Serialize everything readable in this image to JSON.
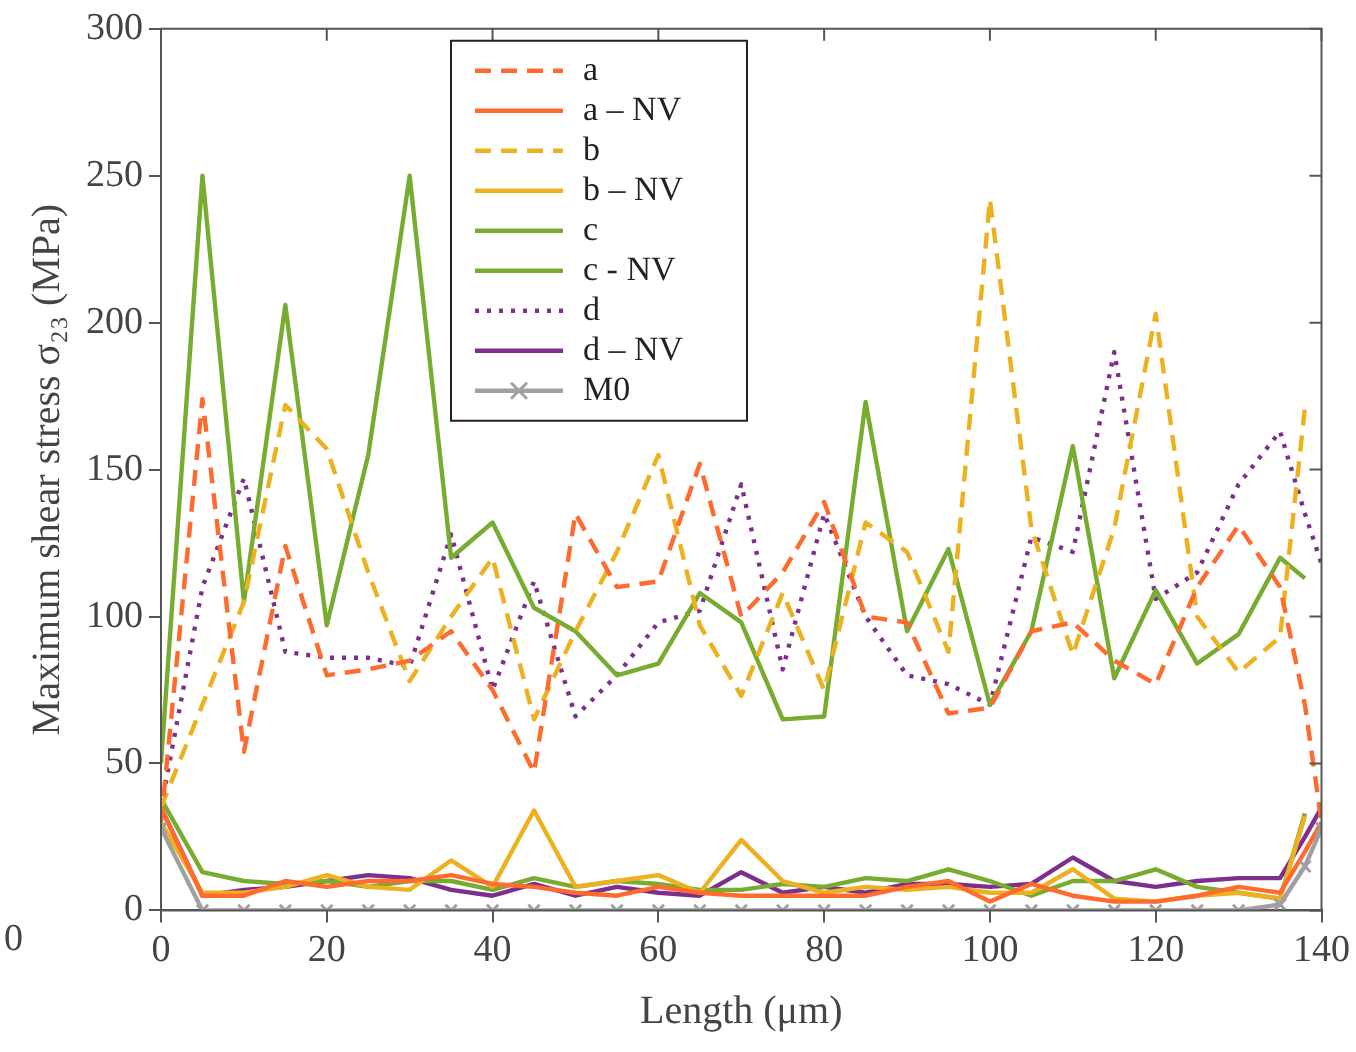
{
  "chart_data": {
    "type": "line",
    "xlabel": "Length (μm)",
    "ylabel": "Maximum shear stress σ₂₃ (MPa)",
    "x": [
      0,
      5,
      10,
      15,
      20,
      25,
      30,
      35,
      40,
      45,
      50,
      55,
      60,
      65,
      70,
      75,
      80,
      85,
      90,
      95,
      100,
      105,
      110,
      115,
      120,
      125,
      130,
      135,
      138,
      140
    ],
    "xlim": [
      0,
      140
    ],
    "xticks": [
      0,
      20,
      40,
      60,
      80,
      100,
      120,
      140
    ],
    "ylim": [
      0,
      300
    ],
    "yticks": [
      0,
      50,
      100,
      150,
      200,
      250,
      300
    ],
    "grid": false,
    "legend": "top",
    "marker": "none",
    "annotations": [
      "0"
    ],
    "series": [
      {
        "name": "a",
        "color": "#ff6a2e",
        "line_style": "dashed",
        "values": [
          30,
          174,
          54,
          124,
          80,
          82,
          85,
          95,
          75,
          47,
          135,
          110,
          112,
          152,
          100,
          115,
          139,
          100,
          98,
          67,
          69,
          95,
          98,
          85,
          77,
          110,
          131,
          110,
          70,
          30
        ]
      },
      {
        "name": "a – NV",
        "color": "#ff6a2e",
        "line_style": "solid",
        "values": [
          35,
          5,
          5,
          10,
          8,
          10,
          10,
          12,
          9,
          8,
          6,
          5,
          8,
          6,
          5,
          5,
          5,
          5,
          8,
          10,
          3,
          9,
          5,
          3,
          3,
          5,
          8,
          6,
          20,
          30
        ]
      },
      {
        "name": "b",
        "color": "#edb120",
        "line_style": "dashed",
        "values": [
          35,
          70,
          105,
          172,
          157,
          115,
          78,
          100,
          120,
          65,
          95,
          122,
          155,
          97,
          73,
          108,
          75,
          132,
          122,
          88,
          242,
          130,
          87,
          130,
          203,
          100,
          81,
          93,
          171,
          null
        ]
      },
      {
        "name": "b – NV",
        "color": "#edb120",
        "line_style": "solid",
        "values": [
          30,
          6,
          6,
          8,
          12,
          8,
          7,
          17,
          8,
          34,
          8,
          10,
          12,
          6,
          24,
          10,
          6,
          8,
          7,
          8,
          6,
          6,
          14,
          4,
          3,
          5,
          6,
          4,
          32,
          null
        ]
      },
      {
        "name": "c",
        "color": "#77ac30",
        "line_style": "solid",
        "values": [
          50,
          250,
          105,
          206,
          97,
          155,
          250,
          120,
          132,
          103,
          95,
          80,
          84,
          108,
          98,
          65,
          66,
          173,
          95,
          123,
          70,
          95,
          158,
          79,
          109,
          84,
          94,
          120,
          113,
          null
        ]
      },
      {
        "name": "c - NV",
        "color": "#77ac30",
        "line_style": "solid",
        "values": [
          38,
          13,
          10,
          9,
          10,
          8,
          10,
          10,
          7,
          11,
          8,
          10,
          9,
          7,
          7,
          9,
          8,
          11,
          10,
          14,
          10,
          5,
          10,
          10,
          14,
          8,
          6,
          4,
          33,
          null
        ]
      },
      {
        "name": "d",
        "color": "#7e2f8e",
        "line_style": "dotted",
        "values": [
          35,
          110,
          147,
          88,
          86,
          86,
          83,
          128,
          75,
          112,
          66,
          80,
          98,
          102,
          145,
          82,
          135,
          100,
          80,
          77,
          70,
          127,
          122,
          190,
          106,
          115,
          145,
          163,
          135,
          118
        ]
      },
      {
        "name": "d – NV",
        "color": "#7e2f8e",
        "line_style": "solid",
        "values": [
          35,
          5,
          7,
          8,
          10,
          12,
          11,
          7,
          5,
          9,
          5,
          8,
          6,
          5,
          13,
          6,
          8,
          6,
          9,
          9,
          8,
          9,
          18,
          10,
          8,
          10,
          11,
          11,
          25,
          35
        ]
      },
      {
        "name": "M0",
        "color": "#a0a0a0",
        "line_style": "solid",
        "marker": "cross",
        "values": [
          28,
          0,
          0,
          0,
          0,
          0,
          0,
          0,
          0,
          0,
          0,
          0,
          0,
          0,
          0,
          0,
          0,
          0,
          0,
          0,
          0,
          0,
          0,
          0,
          0,
          0,
          0,
          2,
          15,
          28
        ]
      }
    ]
  }
}
